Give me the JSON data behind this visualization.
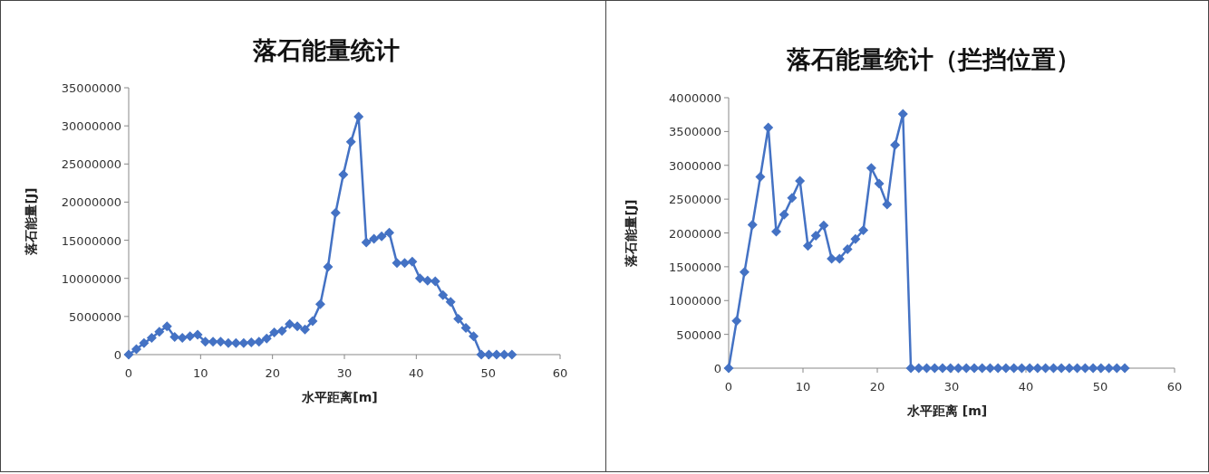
{
  "chart_data": [
    {
      "type": "line",
      "title": "落石能量统计",
      "xlabel": "水平距离[m]",
      "ylabel": "落石能量[J]",
      "marker": "diamond",
      "line_style": "solid",
      "x": [
        0,
        1.07,
        2.13,
        3.2,
        4.26,
        5.33,
        6.4,
        7.46,
        8.53,
        9.59,
        10.66,
        11.73,
        12.79,
        13.86,
        14.92,
        15.99,
        17.06,
        18.12,
        19.19,
        20.25,
        21.32,
        22.39,
        23.45,
        24.52,
        25.58,
        26.65,
        27.72,
        28.78,
        29.85,
        30.91,
        31.98,
        33.05,
        34.11,
        35.18,
        36.24,
        37.31,
        38.38,
        39.44,
        40.51,
        41.57,
        42.64,
        43.71,
        44.77,
        45.84,
        46.9,
        47.97,
        49.04,
        50.1,
        51.17,
        52.23,
        53.3
      ],
      "series": [
        {
          "color": "#4472c4",
          "values": [
            0,
            700000,
            1500000,
            2200000,
            3000000,
            3700000,
            2300000,
            2200000,
            2400000,
            2600000,
            1700000,
            1700000,
            1700000,
            1500000,
            1500000,
            1500000,
            1600000,
            1700000,
            2100000,
            2900000,
            3100000,
            4000000,
            3700000,
            3300000,
            4400000,
            6600000,
            11500000,
            18600000,
            23600000,
            27900000,
            31200000,
            14700000,
            15200000,
            15500000,
            16000000,
            12000000,
            12000000,
            12200000,
            10000000,
            9700000,
            9600000,
            7800000,
            6900000,
            4700000,
            3500000,
            2400000,
            0,
            0,
            0,
            0,
            0
          ]
        }
      ],
      "xlim": [
        0,
        60
      ],
      "xticks": [
        0,
        10,
        20,
        30,
        40,
        50,
        60
      ],
      "ylim": [
        0,
        35000000
      ],
      "yticks": [
        0,
        5000000,
        10000000,
        15000000,
        20000000,
        25000000,
        30000000,
        35000000
      ]
    },
    {
      "type": "line",
      "title": "落石能量统计（拦挡位置）",
      "xlabel": "水平距离 [m]",
      "ylabel": "落石能量[J]",
      "marker": "diamond",
      "line_style": "solid",
      "x": [
        0,
        1.07,
        2.13,
        3.2,
        4.26,
        5.33,
        6.4,
        7.46,
        8.53,
        9.59,
        10.66,
        11.73,
        12.79,
        13.86,
        14.92,
        15.99,
        17.06,
        18.12,
        19.19,
        20.25,
        21.32,
        22.39,
        23.45,
        24.52,
        25.58,
        26.65,
        27.72,
        28.78,
        29.85,
        30.91,
        31.98,
        33.05,
        34.11,
        35.18,
        36.24,
        37.31,
        38.38,
        39.44,
        40.51,
        41.57,
        42.64,
        43.71,
        44.77,
        45.84,
        46.9,
        47.97,
        49.04,
        50.1,
        51.17,
        52.23,
        53.3
      ],
      "series": [
        {
          "color": "#4472c4",
          "values": [
            0,
            700000,
            1420000,
            2120000,
            2830000,
            3560000,
            2020000,
            2270000,
            2520000,
            2770000,
            1810000,
            1960000,
            2110000,
            1620000,
            1620000,
            1760000,
            1910000,
            2040000,
            2960000,
            2730000,
            2420000,
            3300000,
            3760000,
            0,
            0,
            0,
            0,
            0,
            0,
            0,
            0,
            0,
            0,
            0,
            0,
            0,
            0,
            0,
            0,
            0,
            0,
            0,
            0,
            0,
            0,
            0,
            0,
            0,
            0,
            0,
            0
          ]
        }
      ],
      "xlim": [
        0,
        60
      ],
      "xticks": [
        0,
        10,
        20,
        30,
        40,
        50,
        60
      ],
      "ylim": [
        0,
        4000000
      ],
      "yticks": [
        0,
        500000,
        1000000,
        1500000,
        2000000,
        2500000,
        3000000,
        3500000,
        4000000
      ]
    }
  ]
}
